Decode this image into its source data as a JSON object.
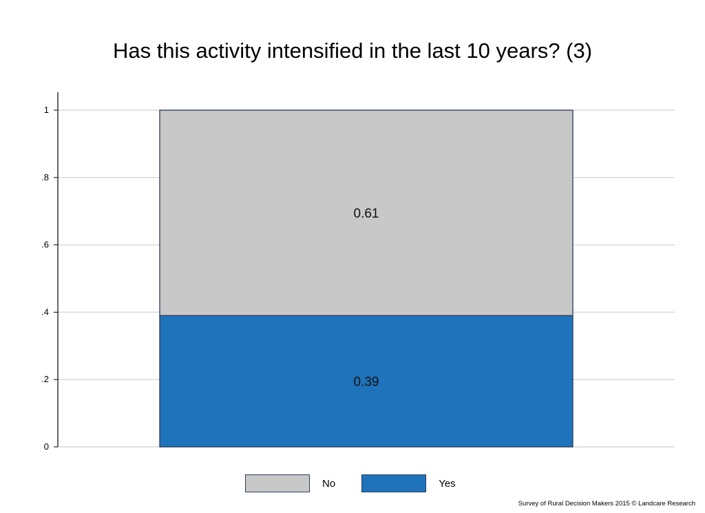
{
  "chart_data": {
    "type": "bar",
    "stacked": true,
    "title": "Has this activity intensified in the last 10 years? (3)",
    "xlabel": "",
    "ylabel": "",
    "ylim": [
      0,
      1
    ],
    "yticks": [
      {
        "value": 0,
        "label": "0"
      },
      {
        "value": 0.2,
        "label": ".2"
      },
      {
        "value": 0.4,
        "label": ".4"
      },
      {
        "value": 0.6,
        "label": ".6"
      },
      {
        "value": 0.8,
        "label": ".8"
      },
      {
        "value": 1,
        "label": "1"
      }
    ],
    "grid": true,
    "legend_position": "bottom",
    "categories": [
      ""
    ],
    "series": [
      {
        "name": "Yes",
        "values": [
          0.39
        ],
        "label": "0.39",
        "color": "#1f73bb"
      },
      {
        "name": "No",
        "values": [
          0.61
        ],
        "label": "0.61",
        "color": "#c8c8c8"
      }
    ]
  },
  "legend": {
    "items": [
      {
        "label": "No",
        "color": "#c8c8c8"
      },
      {
        "label": "Yes",
        "color": "#1f73bb"
      }
    ]
  },
  "footer": {
    "note": "Survey of Rural Decision Makers 2015 © Landcare Research"
  }
}
